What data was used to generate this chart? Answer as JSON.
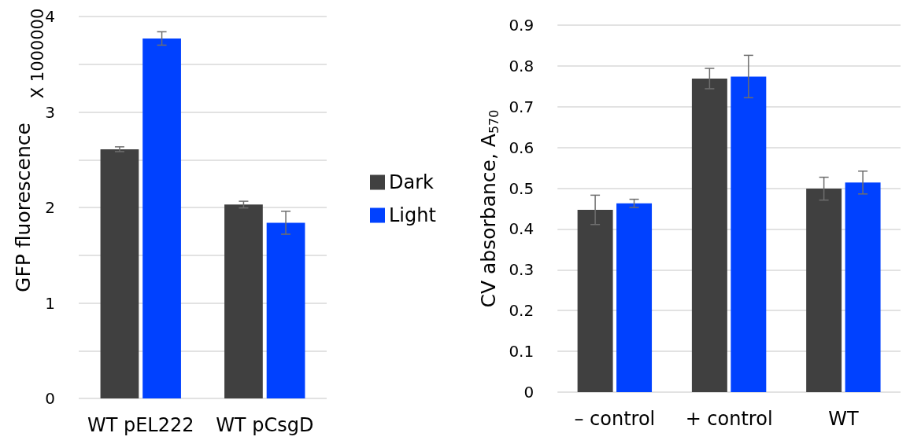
{
  "chart_data": [
    {
      "type": "bar",
      "ylabel": "GFP fluorescence",
      "annotations": [
        "X 1000000"
      ],
      "categories": [
        "WT pEL222",
        "WT pCsgD"
      ],
      "series": [
        {
          "name": "Dark",
          "color": "#404040",
          "values": [
            2.61,
            2.03
          ],
          "errors": [
            0.025,
            0.035
          ]
        },
        {
          "name": "Light",
          "color": "#0041ff",
          "values": [
            3.77,
            1.84
          ],
          "errors": [
            0.07,
            0.12
          ]
        }
      ],
      "ylim": [
        0,
        4
      ],
      "yticks": [
        0,
        {
          "value": 0.5,
          "label": null
        },
        1,
        {
          "value": 1.5,
          "label": null
        },
        2,
        {
          "value": 2.5,
          "label": null
        },
        3,
        {
          "value": 3.5,
          "label": null
        },
        4
      ],
      "grid": "y",
      "legend": "right"
    },
    {
      "type": "bar",
      "ylabel": "CV absorbance, A$_{570}$",
      "categories": [
        "– control",
        "+ control",
        "WT"
      ],
      "series": [
        {
          "color": "#404040",
          "values": [
            0.447,
            0.769,
            0.499
          ],
          "errors": [
            0.036,
            0.025,
            0.028
          ]
        },
        {
          "color": "#0041ff",
          "values": [
            0.463,
            0.774,
            0.514
          ],
          "errors": [
            0.01,
            0.052,
            0.028
          ]
        }
      ],
      "ylim": [
        0,
        0.9
      ],
      "yticks": [
        0,
        0.1,
        0.2,
        0.3,
        0.4,
        0.5,
        0.6,
        0.7,
        0.8,
        0.9
      ],
      "grid": "y"
    }
  ]
}
